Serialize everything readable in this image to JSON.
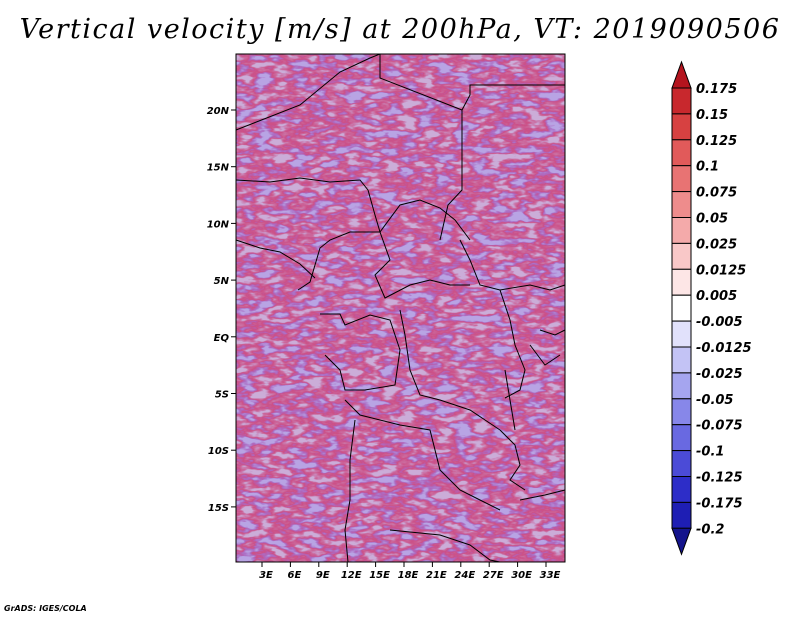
{
  "title": "Vertical velocity [m/s] at 200hPa, VT: 2019090506",
  "credit": "GrADS: IGES/COLA",
  "map": {
    "lat_labels": [
      "20N",
      "15N",
      "10N",
      "5N",
      "EQ",
      "5S",
      "10S",
      "15S"
    ],
    "lon_labels": [
      "3E",
      "6E",
      "9E",
      "12E",
      "15E",
      "18E",
      "21E",
      "24E",
      "27E",
      "30E",
      "33E"
    ]
  },
  "colorbar": {
    "labels": [
      "0.175",
      "0.15",
      "0.125",
      "0.1",
      "0.075",
      "0.05",
      "0.025",
      "0.0125",
      "0.005",
      "-0.005",
      "-0.0125",
      "-0.025",
      "-0.05",
      "-0.075",
      "-0.1",
      "-0.125",
      "-0.175",
      "-0.2"
    ],
    "colors": [
      "#b4141e",
      "#c8282d",
      "#d74141",
      "#e15a5a",
      "#e87373",
      "#ee8c8c",
      "#f4aaaa",
      "#f9c8c8",
      "#fde6e6",
      "#ffffff",
      "#e1e1fb",
      "#c3c3f5",
      "#a5a5ef",
      "#8787e9",
      "#6969e1",
      "#4b4bd7",
      "#2d2dc8",
      "#1e1eb4",
      "#14148c"
    ]
  }
}
